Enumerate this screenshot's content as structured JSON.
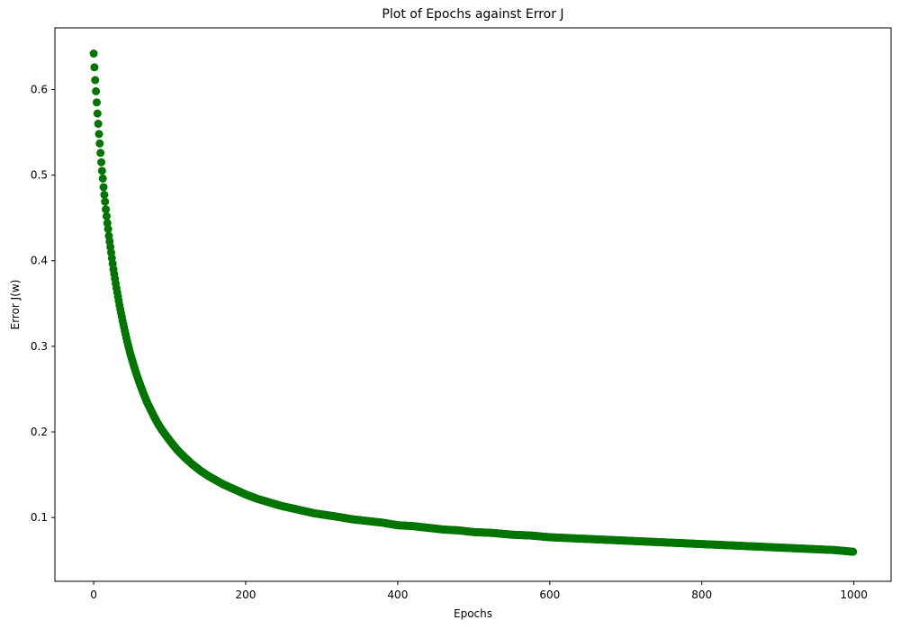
{
  "chart_data": {
    "type": "scatter",
    "title": "Plot of Epochs against Error J",
    "xlabel": "Epochs",
    "ylabel": "Error J(w)",
    "xlim": [
      -51,
      1049
    ],
    "ylim": [
      0.0255,
      0.672
    ],
    "x_ticks": [
      0,
      200,
      400,
      600,
      800,
      1000
    ],
    "x_tick_labels": [
      "0",
      "200",
      "400",
      "600",
      "800",
      "1000"
    ],
    "y_ticks": [
      0.1,
      0.2,
      0.3,
      0.4,
      0.5,
      0.6
    ],
    "y_tick_labels": [
      "0.1",
      "0.2",
      "0.3",
      "0.4",
      "0.5",
      "0.6"
    ],
    "grid": false,
    "legend": "none",
    "marker_color": "#007500",
    "series": [
      {
        "x": [
          0,
          1,
          2,
          3,
          4,
          5,
          6,
          7,
          8,
          9,
          10,
          11,
          12,
          13,
          14,
          15,
          16,
          17,
          18,
          19,
          20,
          22,
          24,
          26,
          28,
          30,
          32,
          34,
          36,
          38,
          40,
          42,
          44,
          46,
          48,
          50,
          55,
          60,
          65,
          70,
          75,
          80,
          85,
          90,
          95,
          100,
          110,
          120,
          130,
          140,
          150,
          160,
          170,
          180,
          190,
          200,
          215,
          230,
          245,
          260,
          275,
          290,
          305,
          320,
          340,
          360,
          380,
          400,
          420,
          440,
          460,
          480,
          500,
          525,
          550,
          575,
          600,
          625,
          650,
          675,
          700,
          725,
          750,
          775,
          800,
          825,
          850,
          875,
          900,
          925,
          950,
          975,
          999
        ],
        "y": [
          0.642,
          0.626,
          0.611,
          0.598,
          0.585,
          0.572,
          0.56,
          0.548,
          0.537,
          0.526,
          0.515,
          0.505,
          0.496,
          0.486,
          0.477,
          0.469,
          0.46,
          0.452,
          0.444,
          0.437,
          0.429,
          0.416,
          0.403,
          0.39,
          0.379,
          0.368,
          0.358,
          0.348,
          0.339,
          0.33,
          0.322,
          0.314,
          0.306,
          0.299,
          0.292,
          0.286,
          0.271,
          0.258,
          0.246,
          0.235,
          0.226,
          0.217,
          0.209,
          0.202,
          0.196,
          0.19,
          0.179,
          0.17,
          0.162,
          0.155,
          0.149,
          0.144,
          0.139,
          0.135,
          0.131,
          0.127,
          0.122,
          0.118,
          0.114,
          0.111,
          0.108,
          0.105,
          0.103,
          0.101,
          0.098,
          0.096,
          0.094,
          0.091,
          0.09,
          0.088,
          0.086,
          0.085,
          0.083,
          0.082,
          0.08,
          0.079,
          0.077,
          0.076,
          0.075,
          0.074,
          0.073,
          0.072,
          0.071,
          0.07,
          0.069,
          0.068,
          0.067,
          0.066,
          0.065,
          0.064,
          0.063,
          0.062,
          0.06
        ]
      }
    ]
  }
}
